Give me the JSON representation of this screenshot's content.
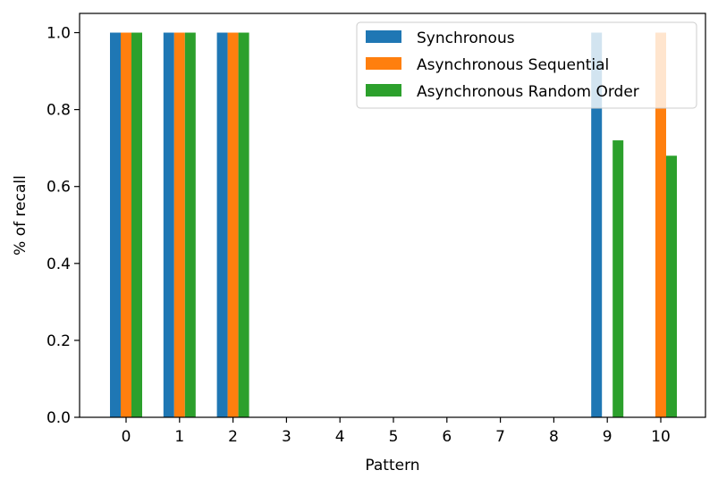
{
  "chart_data": {
    "type": "bar",
    "categories": [
      "0",
      "1",
      "2",
      "3",
      "4",
      "5",
      "6",
      "7",
      "8",
      "9",
      "10"
    ],
    "series": [
      {
        "name": "Synchronous",
        "color": "#1f77b4",
        "values": [
          1.0,
          1.0,
          1.0,
          0,
          0,
          0,
          0,
          0,
          0,
          1.0,
          0
        ]
      },
      {
        "name": "Asynchronous Sequential",
        "color": "#ff7f0e",
        "values": [
          1.0,
          1.0,
          1.0,
          0,
          0,
          0,
          0,
          0,
          0,
          0,
          1.0
        ]
      },
      {
        "name": "Asynchronous Random Order",
        "color": "#2ca02c",
        "values": [
          1.0,
          1.0,
          1.0,
          0,
          0,
          0,
          0,
          0,
          0,
          0.72,
          0.68
        ]
      }
    ],
    "title": "",
    "xlabel": "Pattern",
    "ylabel": "% of recall",
    "ylim": [
      0,
      1.05
    ],
    "yticks": [
      "0.0",
      "0.2",
      "0.4",
      "0.6",
      "0.8",
      "1.0"
    ],
    "legend_position": "top-right",
    "grid": false
  }
}
